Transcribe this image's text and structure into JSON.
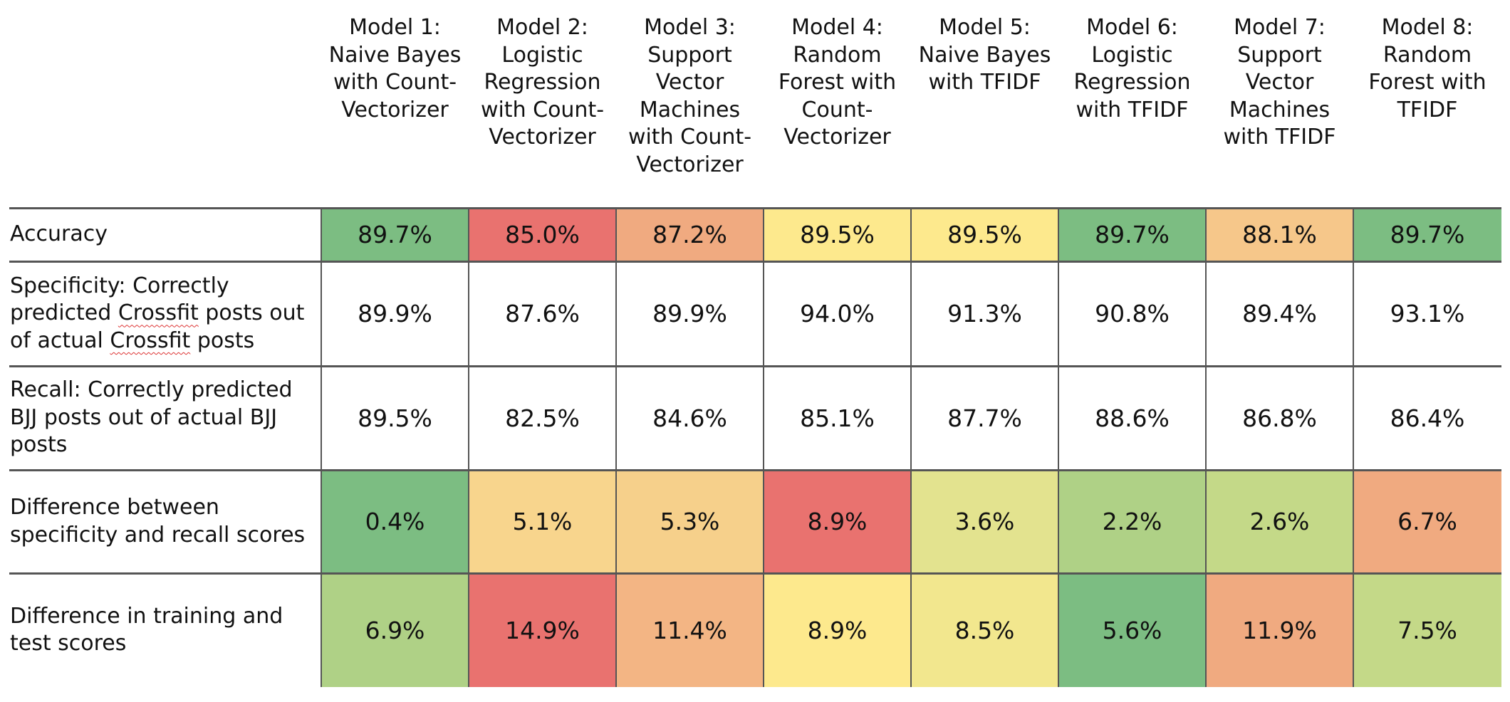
{
  "chart_data": {
    "type": "table",
    "columns": [
      "Model 1:\nNaive Bayes\nwith Count-\nVectorizer",
      "Model 2:\nLogistic\nRegression\nwith Count-\nVectorizer",
      "Model 3:\nSupport\nVector\nMachines\nwith Count-\nVectorizer",
      "Model 4:\nRandom\nForest with\nCount-\nVectorizer",
      "Model 5:\nNaive Bayes\nwith TFIDF",
      "Model 6:\nLogistic\nRegression\nwith TFIDF",
      "Model 7:\nSupport\nVector\nMachines\nwith TFIDF",
      "Model 8:\nRandom\nForest with\nTFIDF"
    ],
    "rows": [
      {
        "label": "Accuracy",
        "values": [
          "89.7%",
          "85.0%",
          "87.2%",
          "89.5%",
          "89.5%",
          "89.7%",
          "88.1%",
          "89.7%"
        ],
        "colors": [
          "#7cbd82",
          "#e9726f",
          "#f0aa80",
          "#fde98d",
          "#fde98d",
          "#7cbd82",
          "#f6c78a",
          "#7cbd82"
        ]
      },
      {
        "label": "Specificity: Correctly\npredicted Crossfit posts out\nof actual Crossfit posts",
        "values": [
          "89.9%",
          "87.6%",
          "89.9%",
          "94.0%",
          "91.3%",
          "90.8%",
          "89.4%",
          "93.1%"
        ],
        "colors": [
          "#ffffff",
          "#ffffff",
          "#ffffff",
          "#ffffff",
          "#ffffff",
          "#ffffff",
          "#ffffff",
          "#ffffff"
        ]
      },
      {
        "label": "Recall: Correctly predicted\nBJJ posts out of actual BJJ\nposts",
        "values": [
          "89.5%",
          "82.5%",
          "84.6%",
          "85.1%",
          "87.7%",
          "88.6%",
          "86.8%",
          "86.4%"
        ],
        "colors": [
          "#ffffff",
          "#ffffff",
          "#ffffff",
          "#ffffff",
          "#ffffff",
          "#ffffff",
          "#ffffff",
          "#ffffff"
        ]
      },
      {
        "label": "Difference between\nspecificity and recall scores",
        "values": [
          "0.4%",
          "5.1%",
          "5.3%",
          "8.9%",
          "3.6%",
          "2.2%",
          "2.6%",
          "6.7%"
        ],
        "colors": [
          "#7cbd82",
          "#f8d58d",
          "#f6d08b",
          "#e9726f",
          "#e3e38f",
          "#afd186",
          "#c4d988",
          "#f0aa80"
        ]
      },
      {
        "label": "Difference in training and\ntest scores",
        "values": [
          "6.9%",
          "14.9%",
          "11.4%",
          "8.9%",
          "8.5%",
          "5.6%",
          "11.9%",
          "7.5%"
        ],
        "colors": [
          "#afd186",
          "#e9726f",
          "#f3b584",
          "#fde98d",
          "#f2e78e",
          "#7cbd82",
          "#f0aa80",
          "#c4d988"
        ]
      }
    ],
    "spellcheck_word": "Crossfit"
  }
}
